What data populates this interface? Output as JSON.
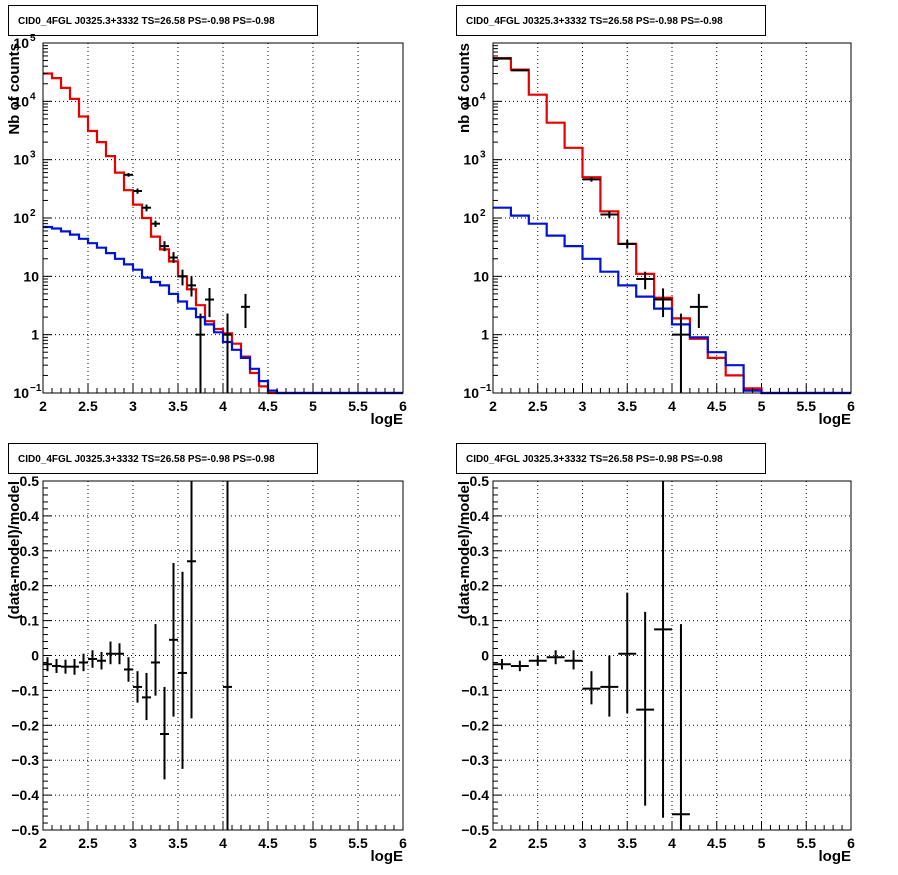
{
  "colors": {
    "data": "#000000",
    "total_model": "#e60000",
    "source_model": "#0014d2",
    "grid": "#000000",
    "frame": "#000000"
  },
  "chart_data": [
    {
      "type": "line",
      "panel": "top-left",
      "title": "CID0_4FGL J0325.3+3332 TS=26.58 PS=-0.98 PS=-0.98",
      "xlabel": "logE",
      "ylabel": "Nb of counts",
      "xlim": [
        2,
        6
      ],
      "ylim": [
        0.1,
        100000
      ],
      "yscale": "log",
      "grid": true,
      "xticks": [
        "2",
        "2.5",
        "3",
        "3.5",
        "4",
        "4.5",
        "5",
        "5.5",
        "6"
      ],
      "yticks": [
        {
          "value": 0.1,
          "label": "10",
          "exp": "−1"
        },
        {
          "value": 1,
          "label": "1"
        },
        {
          "value": 10,
          "label": "10"
        },
        {
          "value": 100,
          "label": "10",
          "exp": "2"
        },
        {
          "value": 1000,
          "label": "10",
          "exp": "3"
        },
        {
          "value": 10000,
          "label": "10",
          "exp": "4"
        },
        {
          "value": 100000,
          "label": "10",
          "exp": "5"
        }
      ],
      "bin_edges": [
        2.0,
        2.1,
        2.2,
        2.3,
        2.4,
        2.5,
        2.6,
        2.7,
        2.8,
        2.9,
        3.0,
        3.1,
        3.2,
        3.3,
        3.4,
        3.5,
        3.6,
        3.7,
        3.8,
        3.9,
        4.0,
        4.1,
        4.2,
        4.3,
        4.4,
        4.5,
        4.6,
        4.7,
        4.8,
        4.9,
        5.0,
        5.1,
        5.2,
        5.3,
        5.4,
        5.5,
        5.6,
        5.7,
        5.8,
        5.9,
        6.0
      ],
      "series": [
        {
          "kind": "step",
          "color_key": "total_model",
          "values": [
            30000,
            25000,
            17000,
            11000,
            5500,
            3100,
            2000,
            1150,
            600,
            300,
            170,
            100,
            48,
            29,
            18,
            10,
            6,
            3.2,
            1.7,
            1.25,
            1.05,
            0.7,
            0.42,
            0.22,
            0.13,
            0.1,
            0.1,
            0.1,
            0.1,
            0.1,
            0.1,
            0.1,
            0.1,
            0.1,
            0.1,
            0.1,
            0.1,
            0.1,
            0.1,
            0.1
          ]
        },
        {
          "kind": "step",
          "color_key": "source_model",
          "values": [
            70,
            66,
            59,
            52,
            44,
            37,
            31,
            25,
            20,
            16,
            13,
            9.5,
            8,
            7,
            5,
            3.7,
            2.8,
            2.0,
            1.5,
            1.1,
            0.75,
            0.55,
            0.4,
            0.26,
            0.16,
            0.11,
            0.1,
            0.1,
            0.1,
            0.1,
            0.1,
            0.1,
            0.1,
            0.1,
            0.1,
            0.1,
            0.1,
            0.1,
            0.1,
            0.1
          ]
        },
        {
          "kind": "points",
          "color_key": "data",
          "points": [
            {
              "x": 2.95,
              "y": 550,
              "xerr": 0.05,
              "ylo": 510,
              "yhi": 590
            },
            {
              "x": 3.05,
              "y": 290,
              "xerr": 0.05,
              "ylo": 260,
              "yhi": 320
            },
            {
              "x": 3.15,
              "y": 150,
              "xerr": 0.05,
              "ylo": 130,
              "yhi": 170
            },
            {
              "x": 3.25,
              "y": 80,
              "xerr": 0.05,
              "ylo": 70,
              "yhi": 90
            },
            {
              "x": 3.35,
              "y": 33,
              "xerr": 0.05,
              "ylo": 27,
              "yhi": 40
            },
            {
              "x": 3.45,
              "y": 21,
              "xerr": 0.05,
              "ylo": 17,
              "yhi": 26
            },
            {
              "x": 3.55,
              "y": 10,
              "xerr": 0.05,
              "ylo": 7,
              "yhi": 13
            },
            {
              "x": 3.65,
              "y": 7,
              "xerr": 0.05,
              "ylo": 4.5,
              "yhi": 10
            },
            {
              "x": 3.75,
              "y": 1.0,
              "xerr": 0.05,
              "ylo": 0.1,
              "yhi": 2.3
            },
            {
              "x": 3.85,
              "y": 4,
              "xerr": 0.05,
              "ylo": 2.0,
              "yhi": 6.3
            },
            {
              "x": 4.05,
              "y": 1.0,
              "xerr": 0.05,
              "ylo": 0.1,
              "yhi": 2.3
            },
            {
              "x": 4.25,
              "y": 3.0,
              "xerr": 0.05,
              "ylo": 1.3,
              "yhi": 5.0
            }
          ]
        }
      ]
    },
    {
      "type": "line",
      "panel": "top-right",
      "title": "CID0_4FGL J0325.3+3332 TS=26.58 PS=-0.98 PS=-0.98",
      "xlabel": "logE",
      "ylabel": "nb of counts",
      "xlim": [
        2,
        6
      ],
      "ylim": [
        0.1,
        100000
      ],
      "yscale": "log",
      "grid": true,
      "xticks": [
        "2",
        "2.5",
        "3",
        "3.5",
        "4",
        "4.5",
        "5",
        "5.5",
        "6"
      ],
      "yticks": [
        {
          "value": 0.1,
          "label": "10",
          "exp": "−1"
        },
        {
          "value": 1,
          "label": "1"
        },
        {
          "value": 10,
          "label": "10"
        },
        {
          "value": 100,
          "label": "10",
          "exp": "2"
        },
        {
          "value": 1000,
          "label": "10",
          "exp": "3"
        },
        {
          "value": 10000,
          "label": "10",
          "exp": "4"
        }
      ],
      "bin_edges": [
        2.0,
        2.2,
        2.4,
        2.6,
        2.8,
        3.0,
        3.2,
        3.4,
        3.6,
        3.8,
        4.0,
        4.2,
        4.4,
        4.6,
        4.8,
        5.0,
        5.2,
        5.4,
        5.6,
        5.8,
        6.0
      ],
      "series": [
        {
          "kind": "step",
          "color_key": "total_model",
          "values": [
            55000,
            35000,
            13000,
            4300,
            1600,
            500,
            130,
            36,
            11,
            4.3,
            1.9,
            0.85,
            0.4,
            0.2,
            0.12,
            0.1,
            0.1,
            0.1,
            0.1,
            0.1
          ]
        },
        {
          "kind": "step",
          "color_key": "source_model",
          "values": [
            150,
            110,
            80,
            50,
            33,
            20,
            12,
            7,
            4.5,
            2.8,
            1.5,
            0.9,
            0.5,
            0.3,
            0.11,
            0.1,
            0.1,
            0.1,
            0.1,
            0.1
          ]
        },
        {
          "kind": "points",
          "color_key": "data",
          "points": [
            {
              "x": 2.1,
              "y": 54000,
              "xerr": 0.1,
              "ylo": 53000,
              "yhi": 55000
            },
            {
              "x": 2.3,
              "y": 34000,
              "xerr": 0.1,
              "ylo": 33500,
              "yhi": 34500
            },
            {
              "x": 3.1,
              "y": 460,
              "xerr": 0.1,
              "ylo": 420,
              "yhi": 500
            },
            {
              "x": 3.3,
              "y": 115,
              "xerr": 0.1,
              "ylo": 100,
              "yhi": 130
            },
            {
              "x": 3.5,
              "y": 36,
              "xerr": 0.1,
              "ylo": 30,
              "yhi": 42
            },
            {
              "x": 3.7,
              "y": 9,
              "xerr": 0.1,
              "ylo": 6,
              "yhi": 12
            },
            {
              "x": 3.9,
              "y": 4,
              "xerr": 0.1,
              "ylo": 2.0,
              "yhi": 6.2
            },
            {
              "x": 4.1,
              "y": 1.0,
              "xerr": 0.1,
              "ylo": 0.1,
              "yhi": 2.3
            },
            {
              "x": 4.3,
              "y": 3.0,
              "xerr": 0.1,
              "ylo": 1.3,
              "yhi": 5.0
            }
          ]
        }
      ]
    },
    {
      "type": "scatter",
      "panel": "bottom-left",
      "title": "CID0_4FGL J0325.3+3332 TS=26.58 PS=-0.98 PS=-0.98",
      "xlabel": "logE",
      "ylabel": "(data-model)/model",
      "xlim": [
        2,
        6
      ],
      "ylim": [
        -0.5,
        0.5
      ],
      "yscale": "linear",
      "grid": true,
      "xticks": [
        "2",
        "2.5",
        "3",
        "3.5",
        "4",
        "4.5",
        "5",
        "5.5",
        "6"
      ],
      "yticks": [
        {
          "value": -0.5,
          "label": "−0.5"
        },
        {
          "value": -0.4,
          "label": "−0.4"
        },
        {
          "value": -0.3,
          "label": "−0.3"
        },
        {
          "value": -0.2,
          "label": "−0.2"
        },
        {
          "value": -0.1,
          "label": "−0.1"
        },
        {
          "value": 0,
          "label": "0"
        },
        {
          "value": 0.1,
          "label": "0.1"
        },
        {
          "value": 0.2,
          "label": "0.2"
        },
        {
          "value": 0.3,
          "label": "0.3"
        },
        {
          "value": 0.4,
          "label": "0.4"
        },
        {
          "value": 0.5,
          "label": "0.5"
        }
      ],
      "series": [
        {
          "kind": "points",
          "color_key": "data",
          "points": [
            {
              "x": 2.05,
              "y": -0.025,
              "xerr": 0.05,
              "ylo": -0.045,
              "yhi": -0.005
            },
            {
              "x": 2.15,
              "y": -0.03,
              "xerr": 0.05,
              "ylo": -0.05,
              "yhi": -0.01
            },
            {
              "x": 2.25,
              "y": -0.032,
              "xerr": 0.05,
              "ylo": -0.052,
              "yhi": -0.012
            },
            {
              "x": 2.35,
              "y": -0.032,
              "xerr": 0.05,
              "ylo": -0.055,
              "yhi": -0.01
            },
            {
              "x": 2.45,
              "y": -0.02,
              "xerr": 0.05,
              "ylo": -0.045,
              "yhi": 0.005
            },
            {
              "x": 2.55,
              "y": -0.01,
              "xerr": 0.05,
              "ylo": -0.035,
              "yhi": 0.015
            },
            {
              "x": 2.65,
              "y": -0.015,
              "xerr": 0.05,
              "ylo": -0.04,
              "yhi": 0.01
            },
            {
              "x": 2.75,
              "y": 0.005,
              "xerr": 0.05,
              "ylo": -0.025,
              "yhi": 0.04
            },
            {
              "x": 2.85,
              "y": 0.005,
              "xerr": 0.05,
              "ylo": -0.025,
              "yhi": 0.035
            },
            {
              "x": 2.95,
              "y": -0.04,
              "xerr": 0.05,
              "ylo": -0.075,
              "yhi": -0.005
            },
            {
              "x": 3.05,
              "y": -0.09,
              "xerr": 0.05,
              "ylo": -0.135,
              "yhi": -0.045
            },
            {
              "x": 3.15,
              "y": -0.12,
              "xerr": 0.05,
              "ylo": -0.185,
              "yhi": -0.05
            },
            {
              "x": 3.25,
              "y": -0.02,
              "xerr": 0.05,
              "ylo": -0.115,
              "yhi": 0.09
            },
            {
              "x": 3.35,
              "y": -0.225,
              "xerr": 0.05,
              "ylo": -0.355,
              "yhi": -0.09
            },
            {
              "x": 3.45,
              "y": 0.045,
              "xerr": 0.05,
              "ylo": -0.175,
              "yhi": 0.265
            },
            {
              "x": 3.55,
              "y": -0.05,
              "xerr": 0.05,
              "ylo": -0.325,
              "yhi": 0.24
            },
            {
              "x": 3.65,
              "y": 0.27,
              "xerr": 0.05,
              "ylo": -0.18,
              "yhi": 0.5
            },
            {
              "x": 4.05,
              "y": -0.09,
              "xerr": 0.05,
              "ylo": -0.5,
              "yhi": 0.5
            }
          ]
        }
      ]
    },
    {
      "type": "scatter",
      "panel": "bottom-right",
      "title": "CID0_4FGL J0325.3+3332 TS=26.58 PS=-0.98 PS=-0.98",
      "xlabel": "logE",
      "ylabel": "(data-model)/model",
      "xlim": [
        2,
        6
      ],
      "ylim": [
        -0.5,
        0.5
      ],
      "yscale": "linear",
      "grid": true,
      "xticks": [
        "2",
        "2.5",
        "3",
        "3.5",
        "4",
        "4.5",
        "5",
        "5.5",
        "6"
      ],
      "yticks": [
        {
          "value": -0.5,
          "label": "−0.5"
        },
        {
          "value": -0.4,
          "label": "−0.4"
        },
        {
          "value": -0.3,
          "label": "−0.3"
        },
        {
          "value": -0.2,
          "label": "−0.2"
        },
        {
          "value": -0.1,
          "label": "−0.1"
        },
        {
          "value": 0,
          "label": "0"
        },
        {
          "value": 0.1,
          "label": "0.1"
        },
        {
          "value": 0.2,
          "label": "0.2"
        },
        {
          "value": 0.3,
          "label": "0.3"
        },
        {
          "value": 0.4,
          "label": "0.4"
        },
        {
          "value": 0.5,
          "label": "0.5"
        }
      ],
      "series": [
        {
          "kind": "points",
          "color_key": "data",
          "points": [
            {
              "x": 2.1,
              "y": -0.025,
              "xerr": 0.1,
              "ylo": -0.04,
              "yhi": -0.01
            },
            {
              "x": 2.3,
              "y": -0.03,
              "xerr": 0.1,
              "ylo": -0.045,
              "yhi": -0.015
            },
            {
              "x": 2.5,
              "y": -0.015,
              "xerr": 0.1,
              "ylo": -0.03,
              "yhi": 0.0
            },
            {
              "x": 2.7,
              "y": -0.005,
              "xerr": 0.1,
              "ylo": -0.025,
              "yhi": 0.015
            },
            {
              "x": 2.9,
              "y": -0.015,
              "xerr": 0.1,
              "ylo": -0.04,
              "yhi": 0.015
            },
            {
              "x": 3.1,
              "y": -0.095,
              "xerr": 0.1,
              "ylo": -0.14,
              "yhi": -0.045
            },
            {
              "x": 3.3,
              "y": -0.09,
              "xerr": 0.1,
              "ylo": -0.175,
              "yhi": 0.0
            },
            {
              "x": 3.5,
              "y": 0.005,
              "xerr": 0.1,
              "ylo": -0.165,
              "yhi": 0.18
            },
            {
              "x": 3.7,
              "y": -0.155,
              "xerr": 0.1,
              "ylo": -0.43,
              "yhi": 0.125
            },
            {
              "x": 3.9,
              "y": 0.075,
              "xerr": 0.1,
              "ylo": -0.465,
              "yhi": 0.5
            },
            {
              "x": 4.1,
              "y": -0.455,
              "xerr": 0.1,
              "ylo": -0.5,
              "yhi": 0.09
            }
          ]
        }
      ]
    }
  ]
}
